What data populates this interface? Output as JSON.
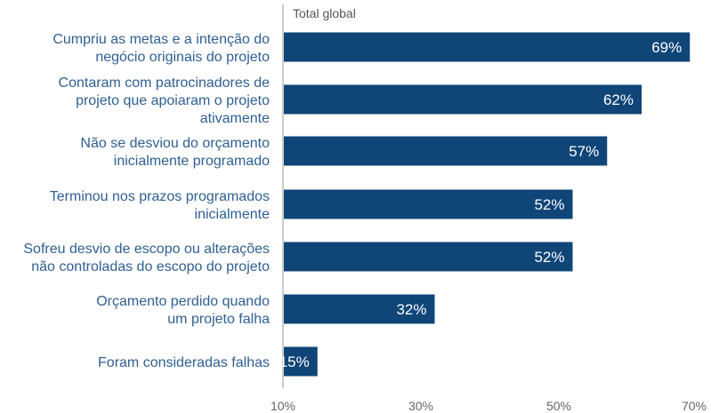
{
  "chart_data": {
    "type": "bar",
    "orientation": "horizontal",
    "title": "",
    "series_title": "Total global",
    "categories": [
      [
        "Cumpriu as metas e a intenção do",
        "negócio originais do projeto"
      ],
      [
        "Contaram com patrocinadores de",
        "projeto que apoiaram o projeto",
        "ativamente"
      ],
      [
        "Não se desviou do orçamento",
        "inicialmente programado"
      ],
      [
        "Terminou nos prazos programados",
        "inicialmente"
      ],
      [
        "Sofreu desvio de escopo ou alterações",
        "não controladas do escopo do projeto"
      ],
      [
        "Orçamento perdido quando",
        "um projeto falha"
      ],
      [
        "Foram consideradas falhas"
      ]
    ],
    "values": [
      69,
      62,
      57,
      52,
      52,
      32,
      15
    ],
    "value_labels": [
      "69%",
      "62%",
      "57%",
      "52%",
      "52%",
      "32%",
      "15%"
    ],
    "x_ticks": [
      "10%",
      "30%",
      "50%",
      "70%"
    ],
    "x_tick_values": [
      10,
      30,
      50,
      70
    ],
    "xlim": [
      10,
      70
    ],
    "grid": false,
    "bar_color": "#0f4577",
    "label_color": "#2f5f92",
    "axis_color": "#999999"
  }
}
